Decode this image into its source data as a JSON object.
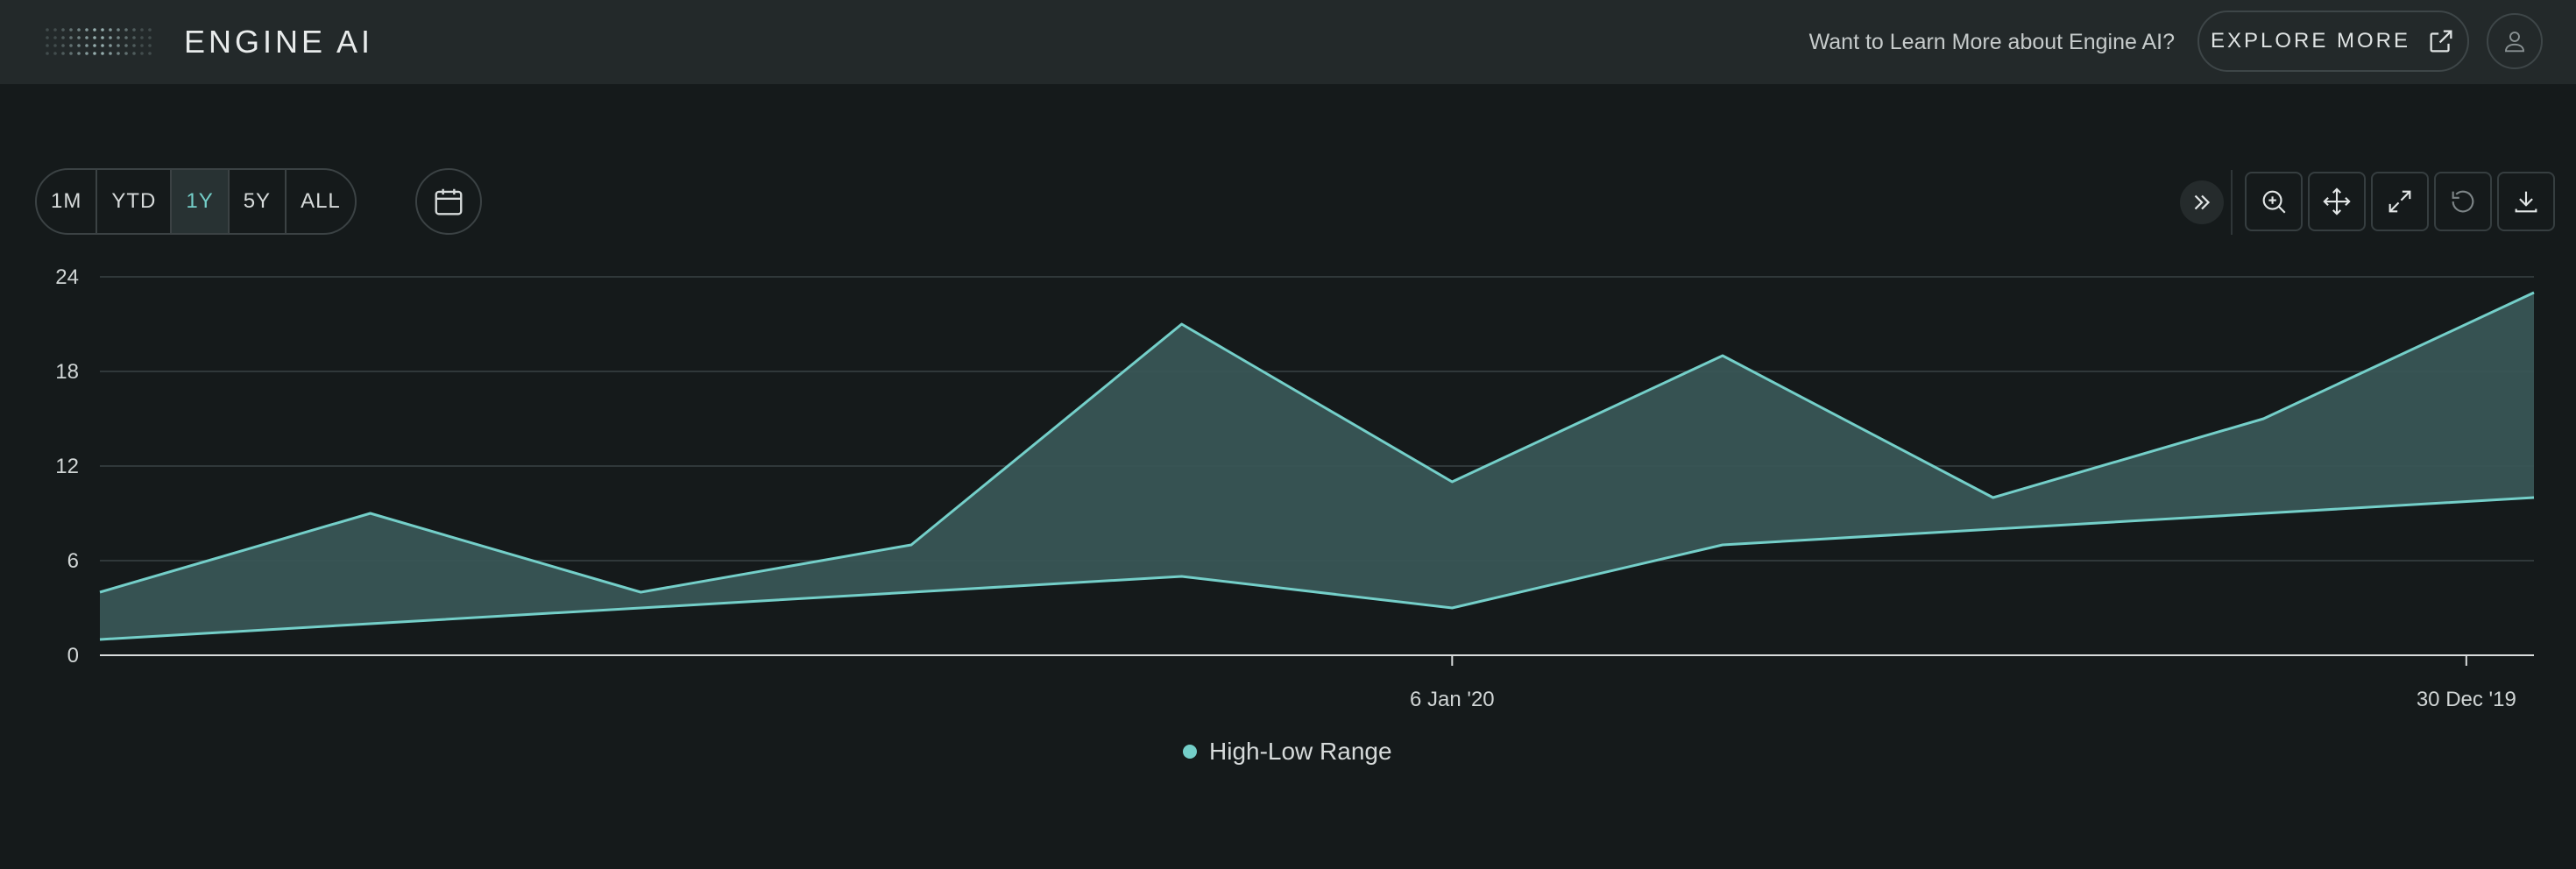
{
  "header": {
    "logo_text": "ENGINE AI",
    "learn_text": "Want to Learn More about Engine AI?",
    "explore_label": "EXPLORE MORE"
  },
  "range": {
    "buttons": [
      "1M",
      "YTD",
      "1Y",
      "5Y",
      "ALL"
    ],
    "active": "1Y"
  },
  "toolbar": {
    "icons": [
      "zoom-in-icon",
      "pan-icon",
      "expand-icon",
      "reset-icon",
      "download-icon"
    ]
  },
  "colors": {
    "accent": "#74cfc9",
    "area_fill": "#3a5757",
    "background": "#151a1b",
    "header": "#23292a"
  },
  "chart_data": {
    "type": "area",
    "title": "",
    "xlabel": "",
    "ylabel": "",
    "ylim": [
      0,
      24
    ],
    "yticks": [
      0,
      6,
      12,
      18,
      24
    ],
    "x_tick_labels": [
      {
        "label": "6 Jan '20",
        "index": 5
      },
      {
        "label": "30 Dec '19",
        "index": 8.75
      }
    ],
    "series": [
      {
        "name": "High-Low Range",
        "high": [
          4,
          9,
          4,
          7,
          21,
          11,
          19,
          10,
          15,
          23
        ],
        "low": [
          1,
          2,
          3,
          4,
          5,
          3,
          7,
          8,
          9,
          10
        ]
      }
    ],
    "grid": true,
    "legend": "bottom-center"
  }
}
